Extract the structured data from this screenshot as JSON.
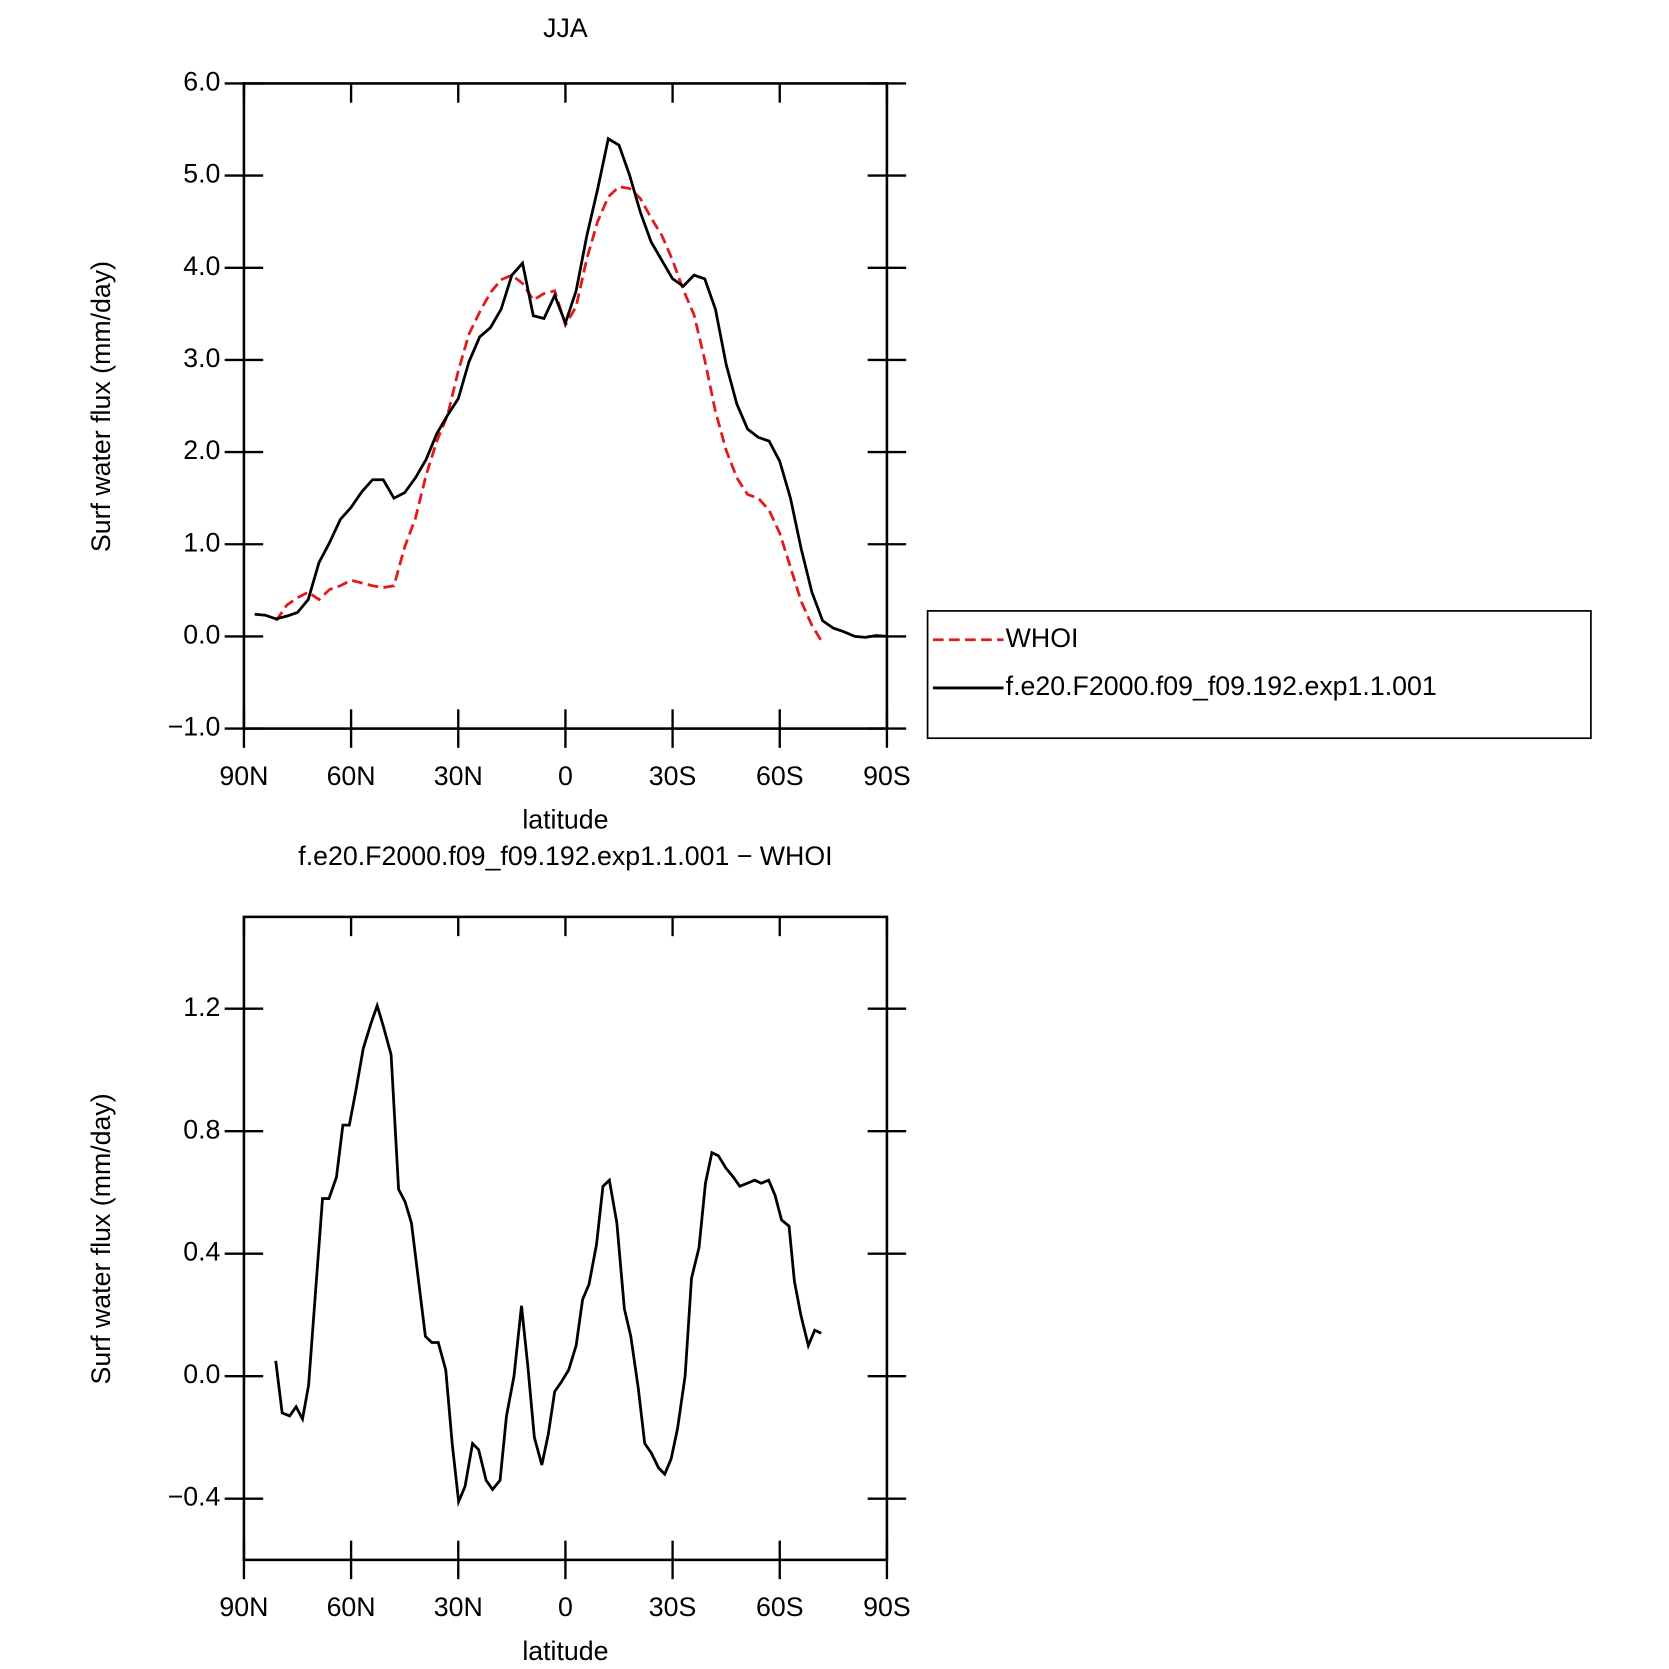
{
  "chart_data": [
    {
      "type": "line",
      "title": "JJA",
      "xlabel": "latitude",
      "ylabel": "Surf water flux (mm/day)",
      "x": [
        87,
        84,
        81,
        78,
        75,
        72,
        69,
        66,
        63,
        60,
        57,
        54,
        51,
        48,
        45,
        42,
        39,
        36,
        33,
        30,
        27,
        24,
        21,
        18,
        15,
        12,
        9,
        6,
        3,
        0,
        -3,
        -6,
        -9,
        -12,
        -15,
        -18,
        -21,
        -24,
        -27,
        -30,
        -33,
        -36,
        -39,
        -42,
        -45,
        -48,
        -51,
        -54,
        -57,
        -60,
        -63,
        -66,
        -69,
        -72,
        -75,
        -78,
        -81,
        -84,
        -87,
        -90
      ],
      "series": [
        {
          "name": "WHOI",
          "color": "#e31a1c",
          "line_style": "dashed",
          "values": [
            null,
            null,
            0.17,
            0.34,
            0.42,
            0.48,
            0.4,
            0.51,
            0.55,
            0.61,
            0.58,
            0.55,
            0.53,
            0.55,
            0.97,
            1.28,
            1.75,
            2.12,
            2.4,
            2.88,
            3.28,
            3.52,
            3.73,
            3.87,
            3.92,
            3.83,
            3.65,
            3.72,
            3.75,
            3.38,
            3.58,
            4.1,
            4.5,
            4.77,
            4.88,
            4.86,
            4.75,
            4.54,
            4.35,
            4.08,
            3.76,
            3.49,
            3.0,
            2.44,
            2.02,
            1.72,
            1.54,
            1.5,
            1.37,
            1.12,
            0.75,
            0.38,
            0.12,
            -0.07,
            null,
            null,
            null,
            null,
            null,
            null
          ]
        },
        {
          "name": "f.e20.F2000.f09_f09.192.exp1.1.001",
          "color": "#000000",
          "line_style": "solid",
          "values": [
            0.24,
            0.23,
            0.19,
            0.22,
            0.26,
            0.4,
            0.8,
            1.02,
            1.27,
            1.4,
            1.57,
            1.7,
            1.7,
            1.5,
            1.56,
            1.72,
            1.92,
            2.2,
            2.4,
            2.58,
            2.98,
            3.25,
            3.35,
            3.55,
            3.92,
            4.05,
            3.48,
            3.45,
            3.7,
            3.4,
            3.75,
            4.35,
            4.85,
            5.4,
            5.33,
            5.0,
            4.6,
            4.28,
            4.08,
            3.88,
            3.8,
            3.92,
            3.88,
            3.55,
            2.95,
            2.52,
            2.25,
            2.16,
            2.12,
            1.9,
            1.5,
            0.95,
            0.48,
            0.17,
            0.09,
            0.05,
            0.0,
            -0.01,
            0.01,
            0.0
          ]
        }
      ],
      "xlim": [
        90,
        -90
      ],
      "xticks": [
        {
          "value": 90,
          "label": "90N"
        },
        {
          "value": 60,
          "label": "60N"
        },
        {
          "value": 30,
          "label": "30N"
        },
        0,
        {
          "value": -30,
          "label": "30S"
        },
        {
          "value": -60,
          "label": "60S"
        },
        {
          "value": -90,
          "label": "90S"
        }
      ],
      "ylim": [
        -1,
        6
      ],
      "yticks": [
        {
          "value": 6,
          "label": "6.0"
        },
        {
          "value": 5,
          "label": "5.0"
        },
        {
          "value": 4,
          "label": "4.0"
        },
        {
          "value": 3,
          "label": "3.0"
        },
        {
          "value": 2,
          "label": "2.0"
        },
        {
          "value": 1,
          "label": "1.0"
        },
        {
          "value": 0,
          "label": "0.0"
        },
        {
          "value": -1,
          "label": "−1.0"
        }
      ],
      "legend": "outside right"
    },
    {
      "type": "line",
      "title": "f.e20.F2000.f09_f09.192.exp1.1.001 − WHOI",
      "xlabel": "latitude",
      "ylabel": "Surf water flux (mm/day)",
      "x": [
        81.1,
        79.3,
        77.2,
        75.4,
        73.6,
        71.9,
        69.8,
        68,
        66.2,
        64.1,
        62.3,
        60.5,
        58.7,
        56.6,
        54.5,
        52.7,
        50.9,
        48.8,
        46.7,
        44.9,
        43.1,
        41,
        39.2,
        37.4,
        35.6,
        33.5,
        31.7,
        29.9,
        28.1,
        26,
        24.3,
        22.2,
        20.4,
        18.3,
        16.5,
        14.4,
        12.3,
        10.5,
        8.7,
        6.6,
        4.8,
        3,
        1.2,
        -0.9,
        -3,
        -4.8,
        -6.6,
        -8.7,
        -10.5,
        -12.3,
        -14.4,
        -16.5,
        -18.3,
        -20.4,
        -22.2,
        -24,
        -26.1,
        -27.8,
        -29.6,
        -31.4,
        -33.5,
        -35.3,
        -37.4,
        -39.2,
        -41,
        -42.8,
        -44.9,
        -47,
        -48.8,
        -50.9,
        -53,
        -54.8,
        -56.9,
        -58.7,
        -60.5,
        -62.6,
        -64.1,
        -65.9,
        -68,
        -69.8,
        -71.6
      ],
      "color": "#000000",
      "values": [
        0.05,
        -0.12,
        -0.13,
        -0.1,
        -0.14,
        -0.03,
        0.3,
        0.58,
        0.58,
        0.65,
        0.82,
        0.82,
        0.93,
        1.07,
        1.15,
        1.21,
        1.14,
        1.05,
        0.61,
        0.57,
        0.5,
        0.3,
        0.13,
        0.11,
        0.11,
        0.02,
        -0.22,
        -0.41,
        -0.36,
        -0.22,
        -0.24,
        -0.34,
        -0.37,
        -0.34,
        -0.13,
        0.0,
        0.23,
        0.03,
        -0.2,
        -0.29,
        -0.19,
        -0.05,
        -0.02,
        0.02,
        0.1,
        0.25,
        0.3,
        0.43,
        0.62,
        0.64,
        0.5,
        0.22,
        0.13,
        -0.04,
        -0.22,
        -0.25,
        -0.3,
        -0.32,
        -0.27,
        -0.17,
        0.0,
        0.32,
        0.42,
        0.63,
        0.73,
        0.72,
        0.68,
        0.65,
        0.62,
        0.63,
        0.64,
        0.63,
        0.64,
        0.59,
        0.51,
        0.49,
        0.31,
        0.2,
        0.1,
        0.15,
        0.14
      ],
      "xlim": [
        90,
        -90
      ],
      "xticks": [
        {
          "value": 90,
          "label": "90N"
        },
        {
          "value": 60,
          "label": "60N"
        },
        {
          "value": 30,
          "label": "30N"
        },
        0,
        {
          "value": -30,
          "label": "30S"
        },
        {
          "value": -60,
          "label": "60S"
        },
        {
          "value": -90,
          "label": "90S"
        }
      ],
      "ylim": [
        -0.6,
        1.5
      ],
      "yticks": [
        {
          "value": 1.2,
          "label": "1.2"
        },
        {
          "value": 0.8,
          "label": "0.8"
        },
        {
          "value": 0.4,
          "label": "0.4"
        },
        {
          "value": 0,
          "label": "0.0"
        },
        {
          "value": -0.4,
          "label": "−0.4"
        }
      ]
    }
  ]
}
